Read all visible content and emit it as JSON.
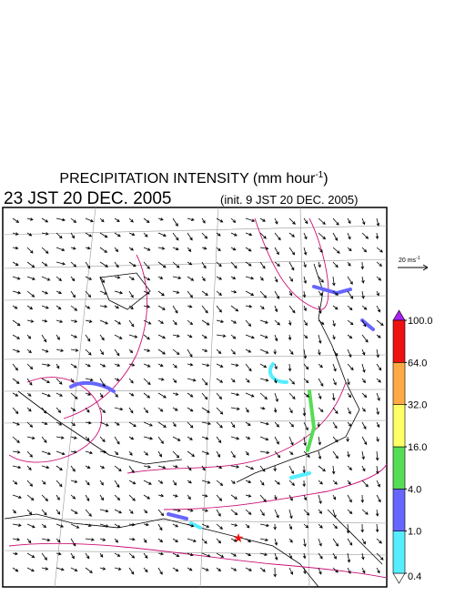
{
  "title": {
    "main": "PRECIPITATION INTENSITY (mm hour",
    "sup": "-1",
    "end": ")"
  },
  "valid_time": "23 JST 20 DEC. 2005",
  "init_time": "(init. 9 JST 20 DEC. 2005)",
  "reference_vector": {
    "label": "20 ms",
    "sup": "-1"
  },
  "legend": {
    "levels": [
      {
        "value": 0.4,
        "label": "0.4"
      },
      {
        "value": 1,
        "label": "1.0"
      },
      {
        "value": 4,
        "label": "4.0"
      },
      {
        "value": 16,
        "label": "16.0"
      },
      {
        "value": 32,
        "label": "32.0"
      },
      {
        "value": 64,
        "label": "64.0"
      },
      {
        "value": 100,
        "label": "100.0"
      }
    ],
    "colors": [
      "#55eeff",
      "#6666ff",
      "#55dd55",
      "#ffff66",
      "#ffaa44",
      "#ee1111"
    ],
    "over_color": "#aa22ee",
    "under_color": "#ffffff"
  }
}
